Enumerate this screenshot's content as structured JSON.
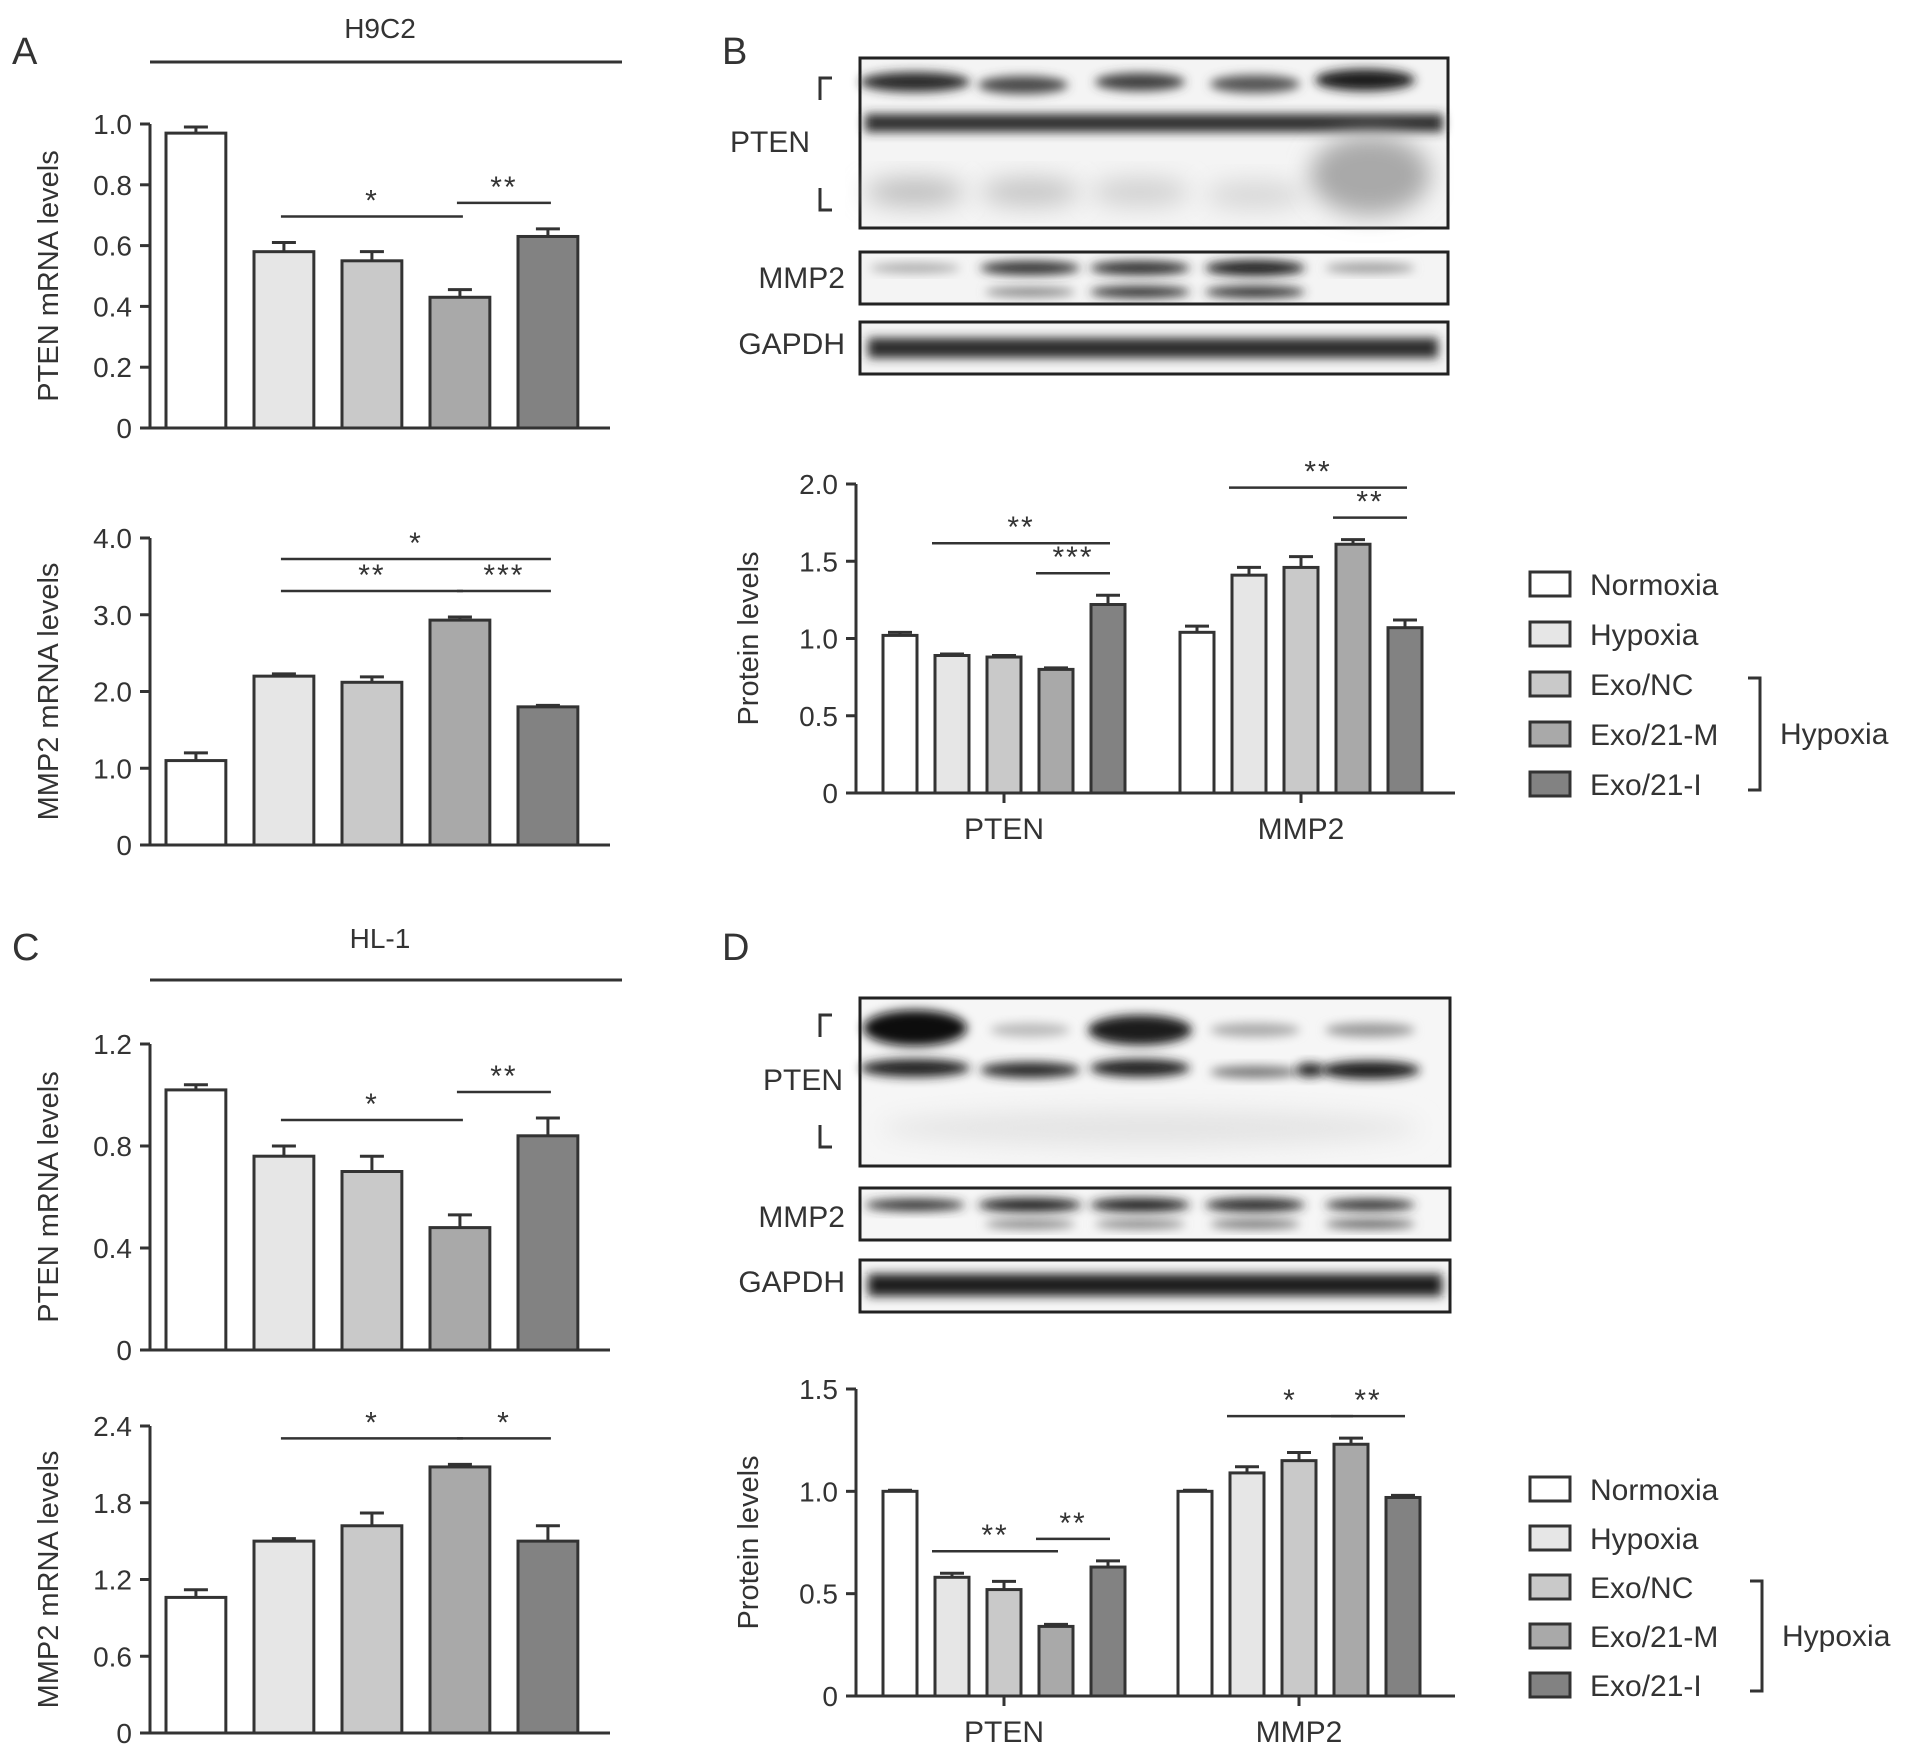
{
  "colors": {
    "Normoxia": "#ffffff",
    "Hypoxia": "#e6e6e6",
    "Exo/NC": "#c9c9c9",
    "Exo/21-M": "#a9a9a9",
    "Exo/21-I": "#828282",
    "axis": "#333333"
  },
  "panels": {
    "A": {
      "letter": "A",
      "cell_line": "H9C2"
    },
    "B": {
      "letter": "B",
      "blot_labels": [
        "PTEN",
        "MMP2",
        "GAPDH"
      ]
    },
    "C": {
      "letter": "C",
      "cell_line": "HL-1"
    },
    "D": {
      "letter": "D",
      "blot_labels": [
        "PTEN",
        "MMP2",
        "GAPDH"
      ]
    }
  },
  "legend": {
    "items": [
      "Normoxia",
      "Hypoxia",
      "Exo/NC",
      "Exo/21-M",
      "Exo/21-I"
    ],
    "bracket_label": "Hypoxia"
  },
  "chart_data": [
    {
      "id": "A-PTEN",
      "type": "bar",
      "title": "",
      "xlabel": "",
      "ylabel": "PTEN mRNA levels",
      "categories": [
        "Normoxia",
        "Hypoxia",
        "Exo/NC",
        "Exo/21-M",
        "Exo/21-I"
      ],
      "values": [
        0.97,
        0.58,
        0.55,
        0.43,
        0.63
      ],
      "errors": [
        0.02,
        0.03,
        0.03,
        0.025,
        0.025
      ],
      "ylim": [
        0,
        1.0
      ],
      "yticks": [
        "0",
        "0.2",
        "0.4",
        "0.6",
        "0.8",
        "1.0"
      ],
      "significance": [
        {
          "from": 1,
          "to": 3,
          "label": "*"
        },
        {
          "from": 3,
          "to": 4,
          "label": "**"
        }
      ]
    },
    {
      "id": "A-MMP2",
      "type": "bar",
      "title": "",
      "xlabel": "",
      "ylabel": "MMP2 mRNA levels",
      "categories": [
        "Normoxia",
        "Hypoxia",
        "Exo/NC",
        "Exo/21-M",
        "Exo/21-I"
      ],
      "values": [
        1.1,
        2.2,
        2.12,
        2.93,
        1.8
      ],
      "errors": [
        0.1,
        0.03,
        0.07,
        0.04,
        0.02
      ],
      "ylim": [
        0,
        4.0
      ],
      "yticks": [
        "0",
        "1.0",
        "2.0",
        "3.0",
        "4.0"
      ],
      "significance": [
        {
          "from": 1,
          "to": 3,
          "label": "**"
        },
        {
          "from": 1,
          "to": 4,
          "label": "*"
        },
        {
          "from": 3,
          "to": 4,
          "label": "***"
        }
      ]
    },
    {
      "id": "B-protein",
      "type": "bar",
      "title": "",
      "xlabel": "",
      "ylabel": "Protein levels",
      "categories": [
        "PTEN",
        "MMP2"
      ],
      "series": [
        {
          "name": "Normoxia",
          "values": [
            1.02,
            1.04
          ],
          "errors": [
            0.02,
            0.04
          ]
        },
        {
          "name": "Hypoxia",
          "values": [
            0.89,
            1.41
          ],
          "errors": [
            0.01,
            0.05
          ]
        },
        {
          "name": "Exo/NC",
          "values": [
            0.88,
            1.46
          ],
          "errors": [
            0.01,
            0.07
          ]
        },
        {
          "name": "Exo/21-M",
          "values": [
            0.8,
            1.61
          ],
          "errors": [
            0.01,
            0.03
          ]
        },
        {
          "name": "Exo/21-I",
          "values": [
            1.22,
            1.07
          ],
          "errors": [
            0.06,
            0.05
          ]
        }
      ],
      "ylim": [
        0,
        2.0
      ],
      "yticks": [
        "0",
        "0.5",
        "1.0",
        "1.5",
        "2.0"
      ],
      "significance": [
        {
          "group": 0,
          "from": 1,
          "to": 4,
          "label": "**"
        },
        {
          "group": 0,
          "from": 3,
          "to": 4,
          "label": "***"
        },
        {
          "group": 1,
          "from": 1,
          "to": 4,
          "label": "**"
        },
        {
          "group": 1,
          "from": 3,
          "to": 4,
          "label": "**"
        }
      ]
    },
    {
      "id": "C-PTEN",
      "type": "bar",
      "title": "",
      "xlabel": "",
      "ylabel": "PTEN mRNA levels",
      "categories": [
        "Normoxia",
        "Hypoxia",
        "Exo/NC",
        "Exo/21-M",
        "Exo/21-I"
      ],
      "values": [
        1.02,
        0.76,
        0.7,
        0.48,
        0.84
      ],
      "errors": [
        0.02,
        0.04,
        0.06,
        0.05,
        0.07
      ],
      "ylim": [
        0,
        1.2
      ],
      "yticks": [
        "0",
        "0.4",
        "0.8",
        "1.2"
      ],
      "significance": [
        {
          "from": 1,
          "to": 3,
          "label": "*"
        },
        {
          "from": 3,
          "to": 4,
          "label": "**"
        }
      ]
    },
    {
      "id": "C-MMP2",
      "type": "bar",
      "title": "",
      "xlabel": "",
      "ylabel": "MMP2 mRNA levels",
      "categories": [
        "Normoxia",
        "Hypoxia",
        "Exo/NC",
        "Exo/21-M",
        "Exo/21-I"
      ],
      "values": [
        1.06,
        1.5,
        1.62,
        2.08,
        1.5
      ],
      "errors": [
        0.06,
        0.02,
        0.1,
        0.02,
        0.12
      ],
      "ylim": [
        0,
        2.4
      ],
      "yticks": [
        "0",
        "0.6",
        "1.2",
        "1.8",
        "2.4"
      ],
      "significance": [
        {
          "from": 1,
          "to": 3,
          "label": "*"
        },
        {
          "from": 3,
          "to": 4,
          "label": "*"
        }
      ]
    },
    {
      "id": "D-protein",
      "type": "bar",
      "title": "",
      "xlabel": "",
      "ylabel": "Protein levels",
      "categories": [
        "PTEN",
        "MMP2"
      ],
      "series": [
        {
          "name": "Normoxia",
          "values": [
            1.0,
            1.0
          ],
          "errors": [
            0.005,
            0.005
          ]
        },
        {
          "name": "Hypoxia",
          "values": [
            0.58,
            1.09
          ],
          "errors": [
            0.02,
            0.03
          ]
        },
        {
          "name": "Exo/NC",
          "values": [
            0.52,
            1.15
          ],
          "errors": [
            0.04,
            0.04
          ]
        },
        {
          "name": "Exo/21-M",
          "values": [
            0.34,
            1.23
          ],
          "errors": [
            0.01,
            0.03
          ]
        },
        {
          "name": "Exo/21-I",
          "values": [
            0.63,
            0.97
          ],
          "errors": [
            0.03,
            0.01
          ]
        }
      ],
      "ylim": [
        0,
        1.5
      ],
      "yticks": [
        "0",
        "0.5",
        "1.0",
        "1.5"
      ],
      "significance": [
        {
          "group": 0,
          "from": 1,
          "to": 3,
          "label": "**"
        },
        {
          "group": 0,
          "from": 3,
          "to": 4,
          "label": "**"
        },
        {
          "group": 1,
          "from": 1,
          "to": 3,
          "label": "*"
        },
        {
          "group": 1,
          "from": 3,
          "to": 4,
          "label": "**"
        }
      ]
    }
  ]
}
